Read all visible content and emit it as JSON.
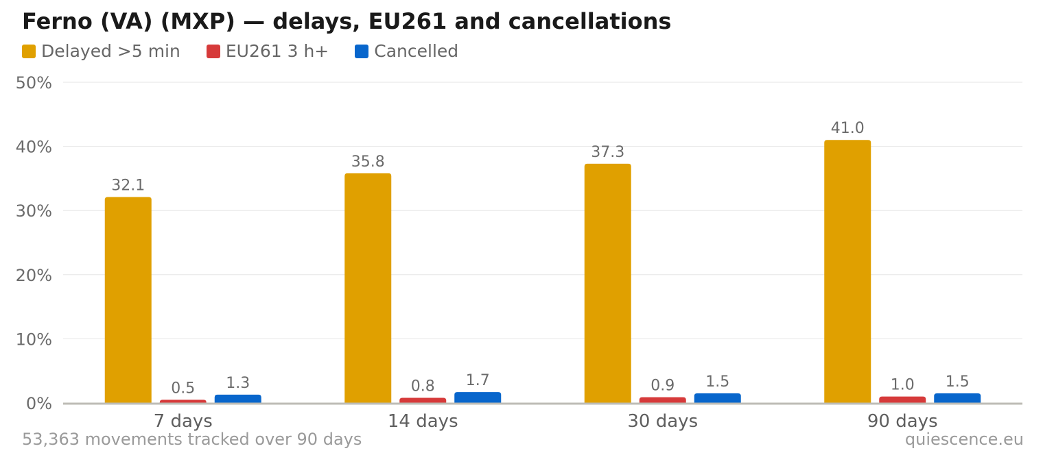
{
  "chart_data": {
    "type": "bar",
    "title": "Ferno (VA) (MXP) — delays, EU261 and cancellations",
    "categories": [
      "7 days",
      "14 days",
      "30 days",
      "90 days"
    ],
    "series": [
      {
        "name": "Delayed >5 min",
        "color": "#E0A000",
        "values": [
          32.1,
          35.8,
          37.3,
          41.0
        ],
        "labels": [
          "32.1",
          "35.8",
          "37.3",
          "41.0"
        ]
      },
      {
        "name": "EU261 3 h+",
        "color": "#D63A3A",
        "values": [
          0.5,
          0.8,
          0.9,
          1.0
        ],
        "labels": [
          "0.5",
          "0.8",
          "0.9",
          "1.0"
        ]
      },
      {
        "name": "Cancelled",
        "color": "#0866CC",
        "values": [
          1.3,
          1.7,
          1.5,
          1.5
        ],
        "labels": [
          "1.3",
          "1.7",
          "1.5",
          "1.5"
        ]
      }
    ],
    "ylim": [
      0,
      50
    ],
    "yticks": [
      0,
      10,
      20,
      30,
      40,
      50
    ],
    "ytick_labels": [
      "0%",
      "10%",
      "20%",
      "30%",
      "40%",
      "50%"
    ],
    "grid": true,
    "legend_position": "top-left"
  },
  "footer": {
    "note": "53,363 movements tracked over 90 days",
    "source": "quiescence.eu"
  }
}
